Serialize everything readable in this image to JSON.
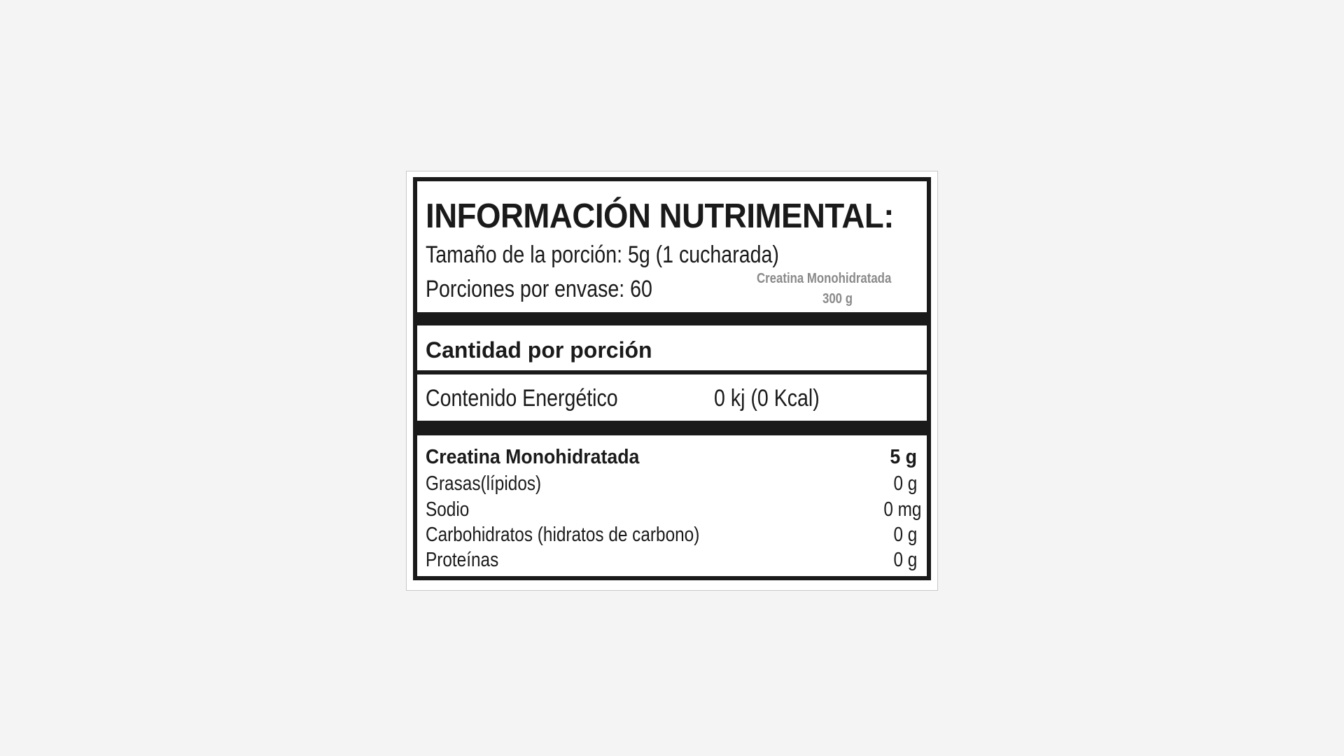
{
  "label": {
    "title": "INFORMACIÓN NUTRIMENTAL:",
    "serving_size": "Tamaño de la porción: 5g (1 cucharada)",
    "servings_per_container": "Porciones por envase: 60",
    "product_name": "Creatina Monohidratada",
    "net_weight": "300 g",
    "amount_per_serving": "Cantidad por porción",
    "energy": {
      "label": "Contenido Energético",
      "value": "0 kj (0 Kcal)"
    },
    "nutrients": [
      {
        "name": "Creatina Monohidratada",
        "value": "5 g",
        "bold": true
      },
      {
        "name": "Grasas(lípidos)",
        "value": "0 g"
      },
      {
        "name": "Sodio",
        "value": "0 mg"
      },
      {
        "name": "Carbohidratos (hidratos de carbono)",
        "value": "0 g"
      },
      {
        "name": "Proteínas",
        "value": "0 g"
      }
    ]
  }
}
